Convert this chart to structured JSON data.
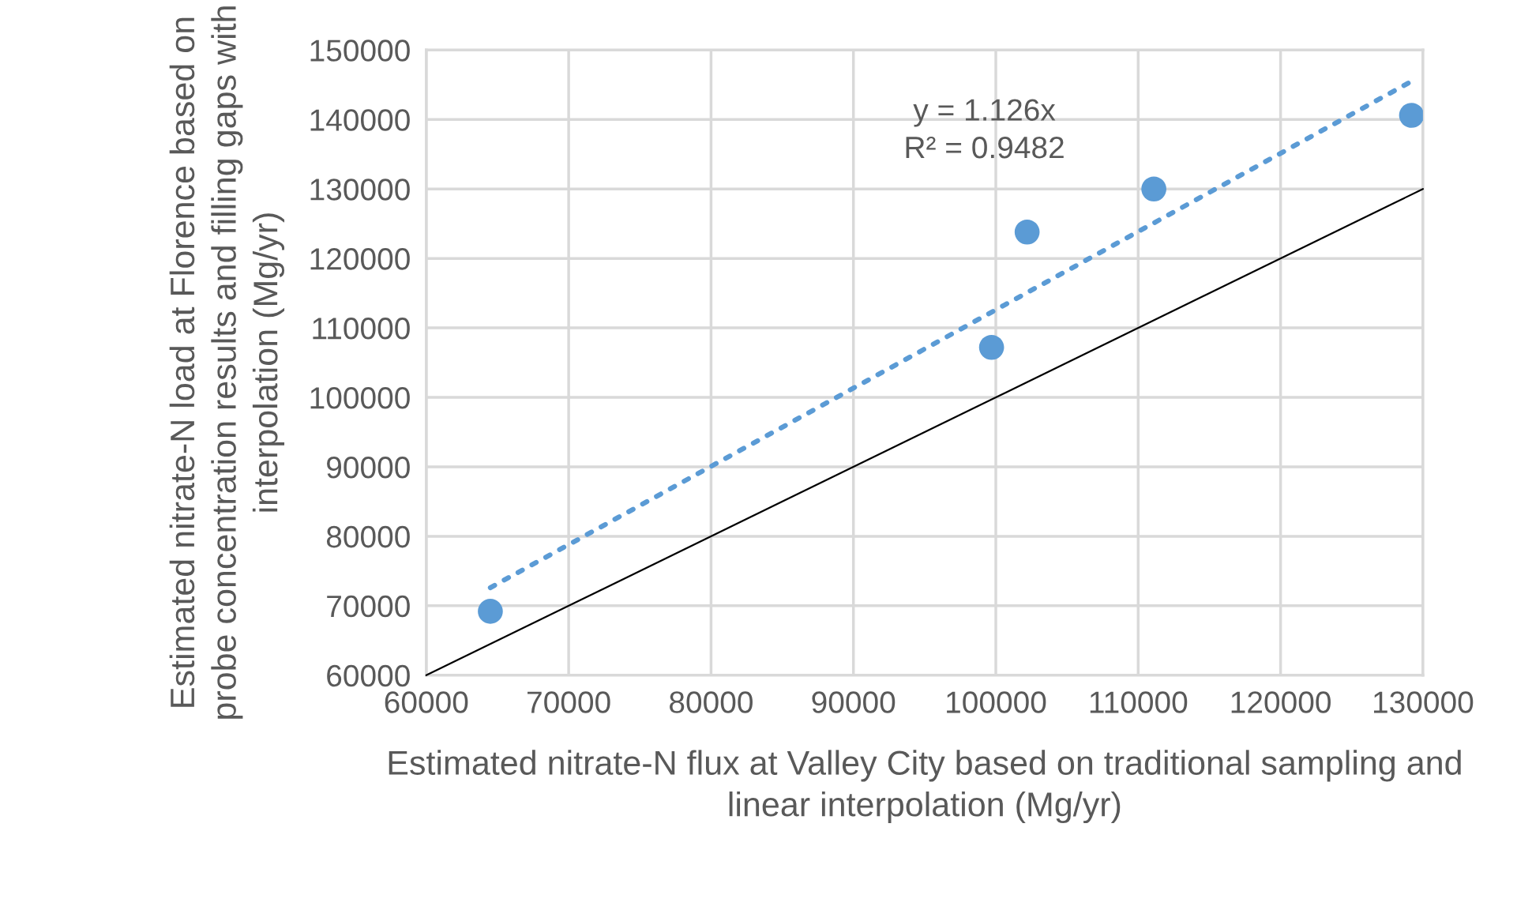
{
  "chart_data": {
    "type": "scatter",
    "xlabel": "Estimated nitrate-N flux at Valley City based on traditional sampling and linear interpolation (Mg/yr)",
    "ylabel": "Estimated nitrate-N load at Florence based on probe concentration results and filling gaps with interpolation (Mg/yr)",
    "series": [
      {
        "color": "#5b9bd5",
        "marker": "circle",
        "x": [
          64500,
          99700,
          102200,
          111100,
          129200
        ],
        "values": [
          69200,
          107200,
          123800,
          130000,
          140600
        ]
      },
      {
        "type": "line",
        "color": "#5b9bd5",
        "line_style": "dotted",
        "marker": "none",
        "x": [
          64500,
          129200
        ],
        "values": [
          72600,
          145500
        ]
      },
      {
        "type": "line",
        "color": "#000000",
        "line_style": "solid",
        "marker": "none",
        "x": [
          60000,
          130000
        ],
        "values": [
          60000,
          130000
        ]
      }
    ],
    "annotations": [
      "y = 1.126x\nR² = 0.9482"
    ],
    "xlim": [
      60000,
      130000
    ],
    "xticks": [
      60000,
      70000,
      80000,
      90000,
      100000,
      110000,
      120000,
      130000
    ],
    "ylim": [
      60000,
      150000
    ],
    "yticks": [
      60000,
      70000,
      80000,
      90000,
      100000,
      110000,
      120000,
      130000,
      140000,
      150000
    ],
    "grid": true
  }
}
